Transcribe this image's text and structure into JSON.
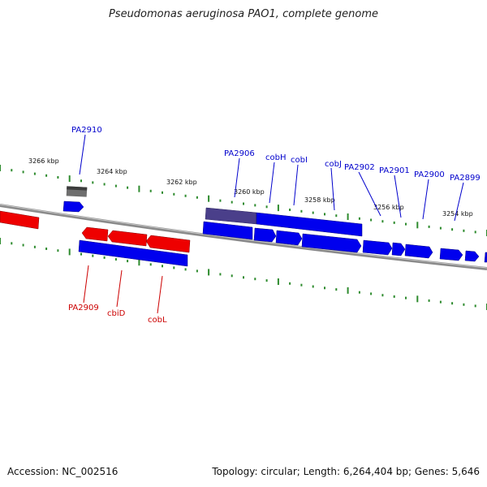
{
  "title": "Pseudomonas aeruginosa PAO1, complete genome",
  "footer": {
    "accession": "Accession: NC_002516",
    "summary": "Topology: circular; Length: 6,264,404 bp; Genes: 5,646"
  },
  "colors": {
    "forward_gene": "#0000ee",
    "reverse_gene": "#ee0000",
    "backbone": "#808080",
    "tick": "#2e8b2e",
    "highlight": "#4a3f8a",
    "pseudo": "#6e6e6e"
  },
  "ruler_labels": [
    "3266 kbp",
    "3264 kbp",
    "3262 kbp",
    "3260 kbp",
    "3258 kbp",
    "3256 kbp",
    "3254 kbp"
  ],
  "gene_labels_top": [
    "PA2910",
    "PA2906",
    "cobH",
    "cobI",
    "cobJ",
    "PA2902",
    "PA2901",
    "PA2900",
    "PA2899"
  ],
  "gene_labels_bottom": [
    "PA2909",
    "cbiD",
    "cobL"
  ]
}
